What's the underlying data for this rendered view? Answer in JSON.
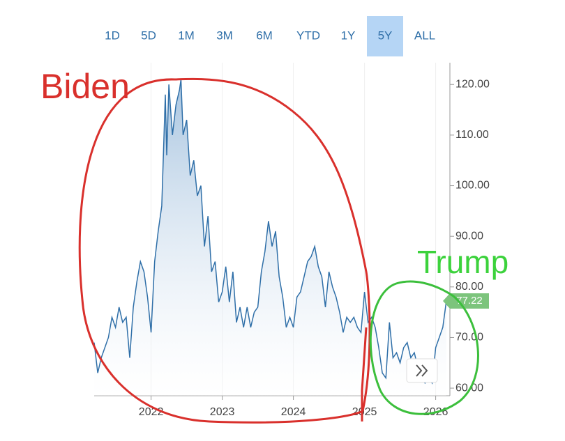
{
  "range_selector": {
    "options": [
      "1D",
      "5D",
      "1M",
      "3M",
      "6M",
      "YTD",
      "1Y",
      "5Y",
      "ALL"
    ],
    "selected": 7
  },
  "chart_data": {
    "type": "line",
    "annotations": [
      "Biden",
      "Trump"
    ],
    "color": "#2f6fa8",
    "xlim": [
      2021.2,
      2026.2
    ],
    "xticks": [
      2022,
      2023,
      2024,
      2025,
      2026
    ],
    "ylim": [
      58.5,
      124.3
    ],
    "yticks": [
      {
        "value": 60,
        "label": "60.00"
      },
      {
        "value": 70,
        "label": "70.00"
      },
      {
        "value": 80,
        "label": "80.00"
      },
      {
        "value": 90,
        "label": "90.00"
      },
      {
        "value": 100,
        "label": "100.00"
      },
      {
        "value": 110,
        "label": "110.00"
      },
      {
        "value": 120,
        "label": "120.00"
      }
    ],
    "grid": true,
    "x": [
      2021.2,
      2021.25,
      2021.3,
      2021.35,
      2021.4,
      2021.45,
      2021.5,
      2021.55,
      2021.6,
      2021.65,
      2021.7,
      2021.75,
      2021.8,
      2021.85,
      2021.9,
      2021.95,
      2022.0,
      2022.05,
      2022.1,
      2022.15,
      2022.2,
      2022.22,
      2022.25,
      2022.3,
      2022.35,
      2022.4,
      2022.42,
      2022.45,
      2022.5,
      2022.55,
      2022.6,
      2022.65,
      2022.7,
      2022.75,
      2022.8,
      2022.85,
      2022.9,
      2022.95,
      2023.0,
      2023.05,
      2023.1,
      2023.15,
      2023.2,
      2023.25,
      2023.3,
      2023.35,
      2023.4,
      2023.45,
      2023.5,
      2023.55,
      2023.6,
      2023.65,
      2023.7,
      2023.75,
      2023.8,
      2023.85,
      2023.9,
      2023.95,
      2024.0,
      2024.05,
      2024.1,
      2024.15,
      2024.2,
      2024.25,
      2024.3,
      2024.35,
      2024.4,
      2024.45,
      2024.5,
      2024.55,
      2024.6,
      2024.65,
      2024.7,
      2024.75,
      2024.8,
      2024.85,
      2024.9,
      2024.95,
      2025.0,
      2025.05,
      2025.1,
      2025.15,
      2025.2,
      2025.25,
      2025.3,
      2025.35,
      2025.4,
      2025.45,
      2025.5,
      2025.55,
      2025.6,
      2025.65,
      2025.7,
      2025.75,
      2025.8,
      2025.85,
      2025.9,
      2025.95,
      2026.0,
      2026.05,
      2026.1,
      2026.15
    ],
    "values": [
      69,
      63,
      66,
      68,
      70,
      74,
      72,
      76,
      73,
      74,
      66,
      76,
      81,
      85,
      83,
      78,
      71,
      85,
      91,
      96,
      118,
      106,
      120,
      110,
      116,
      119,
      121,
      110,
      113,
      102,
      105,
      98,
      100,
      88,
      94,
      83,
      85,
      77,
      79,
      84,
      77,
      83,
      73,
      76,
      72,
      76,
      72,
      75,
      76,
      83,
      87,
      93,
      88,
      91,
      82,
      78,
      72,
      74,
      72,
      78,
      79,
      82,
      85,
      86,
      88,
      84,
      82,
      76,
      83,
      80,
      78,
      75,
      71,
      74,
      73,
      74,
      72,
      71,
      79,
      73,
      74,
      72,
      68,
      63,
      62,
      73,
      66,
      67,
      65,
      68,
      69,
      66,
      67,
      64,
      62,
      61,
      62,
      61,
      68,
      70,
      72,
      77.22
    ]
  }
}
